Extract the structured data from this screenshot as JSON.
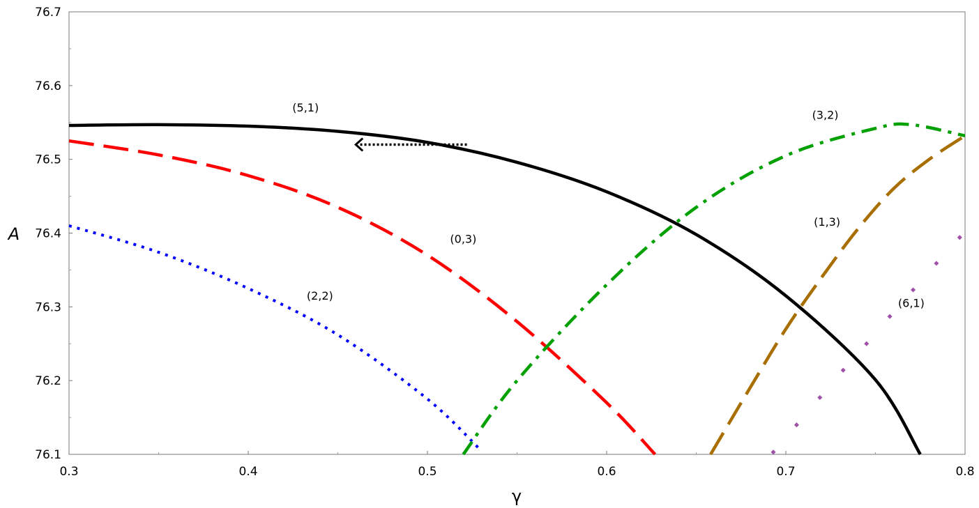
{
  "chart_data": {
    "type": "line",
    "xlabel": "γ",
    "ylabel": "A",
    "xlim": [
      0.3,
      0.8
    ],
    "ylim": [
      76.1,
      76.7
    ],
    "xticks": [
      "0.3",
      "0.4",
      "0.5",
      "0.6",
      "0.7",
      "0.8"
    ],
    "yticks": [
      "76.1",
      "76.2",
      "76.3",
      "76.4",
      "76.5",
      "76.6",
      "76.7"
    ],
    "grid": false,
    "series": [
      {
        "name": "(5,1)",
        "color": "#000000",
        "style": "solid",
        "x": [
          0.3,
          0.35,
          0.4,
          0.45,
          0.5,
          0.55,
          0.6,
          0.65,
          0.7,
          0.75,
          0.775
        ],
        "y": [
          76.546,
          76.547,
          76.545,
          76.538,
          76.523,
          76.496,
          76.456,
          76.398,
          76.315,
          76.201,
          76.1
        ]
      },
      {
        "name": "(0,3)",
        "color": "#ff0000",
        "style": "long-dash",
        "x": [
          0.3,
          0.35,
          0.4,
          0.45,
          0.5,
          0.55,
          0.6,
          0.627
        ],
        "y": [
          76.525,
          76.506,
          76.478,
          76.435,
          76.37,
          76.28,
          76.17,
          76.1
        ]
      },
      {
        "name": "(2,2)",
        "color": "#0000ff",
        "style": "dotted",
        "x": [
          0.3,
          0.35,
          0.4,
          0.45,
          0.5,
          0.53
        ],
        "y": [
          76.41,
          76.374,
          76.325,
          76.262,
          76.175,
          76.105
        ]
      },
      {
        "name": "(3,2)",
        "color": "#00a000",
        "style": "dash-dot",
        "x": [
          0.52,
          0.55,
          0.6,
          0.65,
          0.7,
          0.75,
          0.77,
          0.8
        ],
        "y": [
          76.1,
          76.2,
          76.33,
          76.435,
          76.505,
          76.542,
          76.547,
          76.532
        ]
      },
      {
        "name": "(1,3)",
        "color": "#a86e00",
        "style": "long-dash",
        "x": [
          0.658,
          0.68,
          0.7,
          0.72,
          0.74,
          0.76,
          0.78,
          0.8
        ],
        "y": [
          76.1,
          76.19,
          76.27,
          76.34,
          76.405,
          76.46,
          76.5,
          76.532
        ]
      },
      {
        "name": "(6,1)",
        "color": "#a050a8",
        "style": "sparse-dots",
        "x": [
          0.693,
          0.706,
          0.719,
          0.732,
          0.745,
          0.758,
          0.771,
          0.784,
          0.797
        ],
        "y": [
          76.103,
          76.14,
          76.177,
          76.214,
          76.25,
          76.287,
          76.323,
          76.359,
          76.394
        ]
      }
    ],
    "labels": [
      {
        "text": "(5,1)",
        "x": 0.432,
        "y": 76.565
      },
      {
        "text": "(0,3)",
        "x": 0.52,
        "y": 76.387
      },
      {
        "text": "(2,2)",
        "x": 0.44,
        "y": 76.31
      },
      {
        "text": "(3,2)",
        "x": 0.722,
        "y": 76.555
      },
      {
        "text": "(1,3)",
        "x": 0.723,
        "y": 76.41
      },
      {
        "text": "(6,1)",
        "x": 0.77,
        "y": 76.3
      }
    ],
    "annotations": [
      {
        "type": "arrow",
        "style": "dotted",
        "color": "#000000",
        "from": [
          0.522,
          76.52
        ],
        "to": [
          0.46,
          76.52
        ]
      }
    ]
  }
}
